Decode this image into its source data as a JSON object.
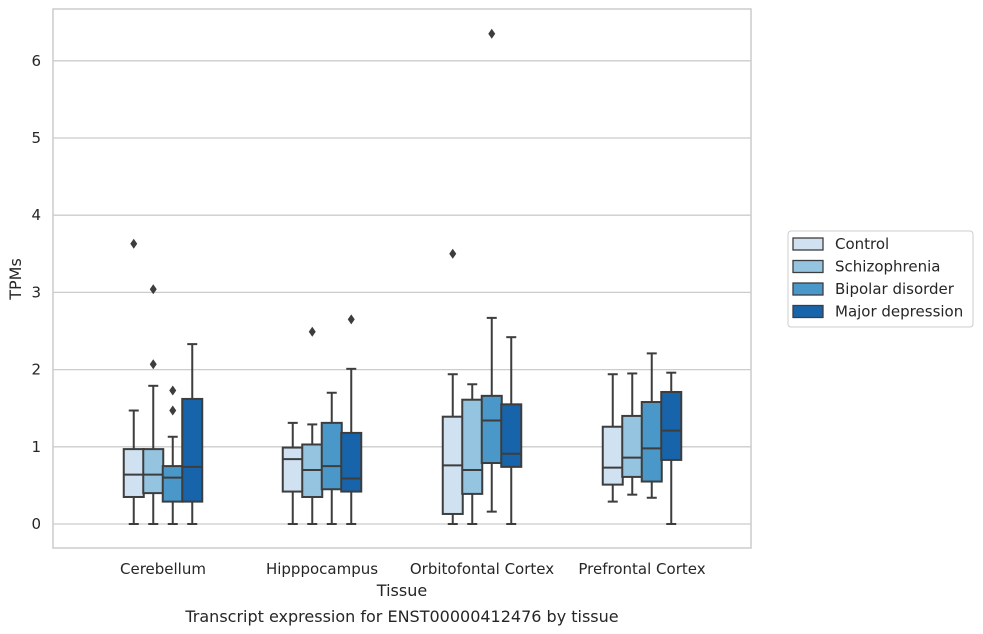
{
  "chart_data": {
    "type": "boxplot",
    "caption": "Transcript expression for ENST00000412476 by tissue",
    "xlabel": "Tissue",
    "ylabel": "TPMs",
    "ylim": [
      -0.3,
      6.7
    ],
    "yticks": [
      0,
      1,
      2,
      3,
      4,
      5,
      6
    ],
    "grid": "horizontal",
    "legend_position": "right",
    "categories": [
      "Cerebellum",
      "Hipppocampus",
      "Orbitofontal Cortex",
      "Prefrontal Cortex"
    ],
    "series": [
      {
        "name": "Control",
        "color": "#d0e1f2",
        "boxes": [
          {
            "whislo": 0.0,
            "q1": 0.35,
            "med": 0.64,
            "q3": 0.97,
            "whishi": 1.47,
            "fliers": [
              3.63
            ]
          },
          {
            "whislo": 0.0,
            "q1": 0.42,
            "med": 0.84,
            "q3": 0.99,
            "whishi": 1.31,
            "fliers": []
          },
          {
            "whislo": 0.0,
            "q1": 0.13,
            "med": 0.76,
            "q3": 1.39,
            "whishi": 1.94,
            "fliers": [
              3.5
            ]
          },
          {
            "whislo": 0.29,
            "q1": 0.51,
            "med": 0.73,
            "q3": 1.26,
            "whishi": 1.94,
            "fliers": []
          }
        ]
      },
      {
        "name": "Schizophrenia",
        "color": "#94c4df",
        "boxes": [
          {
            "whislo": 0.0,
            "q1": 0.4,
            "med": 0.64,
            "q3": 0.97,
            "whishi": 1.79,
            "fliers": [
              2.07,
              3.04
            ]
          },
          {
            "whislo": 0.0,
            "q1": 0.35,
            "med": 0.7,
            "q3": 1.03,
            "whishi": 1.29,
            "fliers": [
              2.49
            ]
          },
          {
            "whislo": 0.0,
            "q1": 0.39,
            "med": 0.7,
            "q3": 1.61,
            "whishi": 1.81,
            "fliers": []
          },
          {
            "whislo": 0.38,
            "q1": 0.61,
            "med": 0.86,
            "q3": 1.4,
            "whishi": 1.95,
            "fliers": []
          }
        ]
      },
      {
        "name": "Bipolar disorder",
        "color": "#4a98c9",
        "boxes": [
          {
            "whislo": 0.0,
            "q1": 0.29,
            "med": 0.6,
            "q3": 0.75,
            "whishi": 1.13,
            "fliers": [
              1.47,
              1.73
            ]
          },
          {
            "whislo": 0.0,
            "q1": 0.45,
            "med": 0.75,
            "q3": 1.31,
            "whishi": 1.7,
            "fliers": []
          },
          {
            "whislo": 0.16,
            "q1": 0.79,
            "med": 1.34,
            "q3": 1.66,
            "whishi": 2.67,
            "fliers": [
              6.35
            ]
          },
          {
            "whislo": 0.34,
            "q1": 0.55,
            "med": 0.98,
            "q3": 1.58,
            "whishi": 2.21,
            "fliers": []
          }
        ]
      },
      {
        "name": "Major depression",
        "color": "#1764ab",
        "boxes": [
          {
            "whislo": 0.0,
            "q1": 0.29,
            "med": 0.74,
            "q3": 1.62,
            "whishi": 2.33,
            "fliers": []
          },
          {
            "whislo": 0.0,
            "q1": 0.42,
            "med": 0.59,
            "q3": 1.18,
            "whishi": 2.01,
            "fliers": [
              2.65
            ]
          },
          {
            "whislo": 0.0,
            "q1": 0.74,
            "med": 0.91,
            "q3": 1.55,
            "whishi": 2.42,
            "fliers": []
          },
          {
            "whislo": 0.0,
            "q1": 0.83,
            "med": 1.21,
            "q3": 1.71,
            "whishi": 1.96,
            "fliers": []
          }
        ]
      }
    ]
  }
}
